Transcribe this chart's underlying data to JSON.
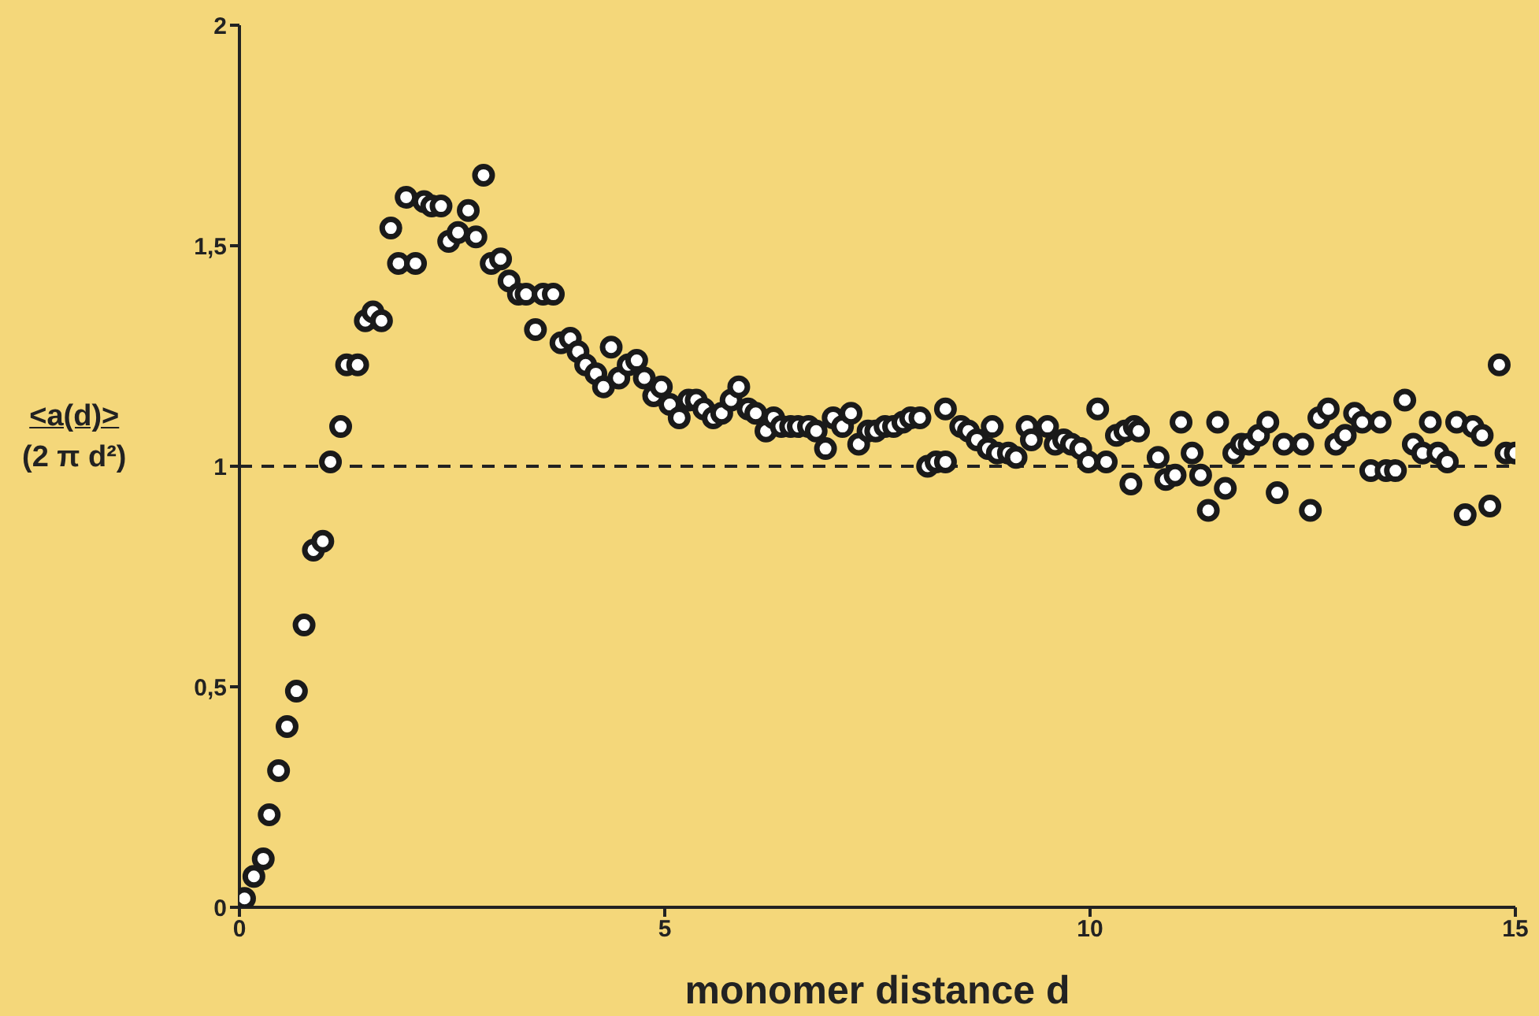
{
  "chart_data": {
    "type": "scatter",
    "xlabel": "monomer distance d",
    "ylabel": "<a(d)>\n(2 π d²)",
    "xlim": [
      0,
      15
    ],
    "xticks": [
      0,
      5,
      10,
      15
    ],
    "ylim": [
      0,
      2
    ],
    "yticks": [
      0,
      {
        "value": 0.5,
        "label": "0,5"
      },
      1,
      {
        "value": 1.5,
        "label": "1,5"
      },
      2
    ],
    "grid": false,
    "legend": false,
    "marker": "circle",
    "ref_lines": [
      {
        "axis": "y",
        "value": 1,
        "label": null,
        "line_style": "dashed",
        "color": "#222222"
      }
    ],
    "series": [
      {
        "color": "#1a1a1a",
        "x": [
          0.06,
          0.17,
          0.28,
          0.35,
          0.46,
          0.56,
          0.67,
          0.76,
          0.87,
          0.98,
          1.07,
          1.19,
          1.26,
          1.39,
          1.48,
          1.57,
          1.67,
          1.78,
          1.87,
          1.96,
          2.07,
          2.17,
          2.26,
          2.37,
          2.46,
          2.57,
          2.69,
          2.78,
          2.87,
          2.96,
          3.07,
          3.17,
          3.28,
          3.37,
          3.48,
          3.57,
          3.69,
          3.78,
          3.89,
          3.98,
          4.07,
          4.19,
          4.28,
          4.37,
          4.46,
          4.57,
          4.67,
          4.76,
          4.87,
          4.96,
          5.06,
          5.17,
          5.28,
          5.37,
          5.46,
          5.57,
          5.67,
          5.78,
          5.87,
          5.98,
          6.07,
          6.19,
          6.28,
          6.37,
          6.48,
          6.57,
          6.69,
          6.78,
          6.89,
          6.98,
          7.09,
          7.19,
          7.28,
          7.39,
          7.48,
          7.59,
          7.69,
          7.8,
          7.89,
          8.0,
          8.09,
          8.19,
          8.3,
          8.3,
          8.48,
          8.57,
          8.67,
          8.8,
          8.85,
          8.91,
          9.04,
          9.13,
          9.26,
          9.31,
          9.5,
          9.59,
          9.69,
          9.78,
          9.89,
          9.98,
          10.09,
          10.19,
          10.31,
          10.41,
          10.48,
          10.52,
          10.57,
          10.8,
          10.89,
          11.0,
          11.07,
          11.2,
          11.3,
          11.39,
          11.5,
          11.59,
          11.69,
          11.78,
          11.87,
          11.98,
          12.09,
          12.2,
          12.28,
          12.5,
          12.59,
          12.69,
          12.8,
          12.89,
          13.0,
          13.11,
          13.2,
          13.3,
          13.41,
          13.48,
          13.59,
          13.7,
          13.8,
          13.91,
          14.0,
          14.09,
          14.2,
          14.31,
          14.41,
          14.5,
          14.61,
          14.7,
          14.81,
          14.89,
          15.0
        ],
        "values": [
          0.02,
          0.07,
          0.11,
          0.21,
          0.31,
          0.41,
          0.49,
          0.64,
          0.81,
          0.83,
          1.01,
          1.09,
          1.23,
          1.23,
          1.33,
          1.35,
          1.33,
          1.54,
          1.46,
          1.61,
          1.46,
          1.6,
          1.59,
          1.59,
          1.51,
          1.53,
          1.58,
          1.52,
          1.66,
          1.46,
          1.47,
          1.42,
          1.39,
          1.39,
          1.31,
          1.39,
          1.39,
          1.28,
          1.29,
          1.26,
          1.23,
          1.21,
          1.18,
          1.27,
          1.2,
          1.23,
          1.24,
          1.2,
          1.16,
          1.18,
          1.14,
          1.11,
          1.15,
          1.15,
          1.13,
          1.11,
          1.12,
          1.15,
          1.18,
          1.13,
          1.12,
          1.08,
          1.11,
          1.09,
          1.09,
          1.09,
          1.09,
          1.08,
          1.04,
          1.11,
          1.09,
          1.12,
          1.05,
          1.08,
          1.08,
          1.09,
          1.09,
          1.1,
          1.11,
          1.11,
          1.0,
          1.01,
          1.01,
          1.13,
          1.09,
          1.08,
          1.06,
          1.04,
          1.09,
          1.03,
          1.03,
          1.02,
          1.09,
          1.06,
          1.09,
          1.05,
          1.06,
          1.05,
          1.04,
          1.01,
          1.13,
          1.01,
          1.07,
          1.08,
          0.96,
          1.09,
          1.08,
          1.02,
          0.97,
          0.98,
          1.1,
          1.03,
          0.98,
          0.9,
          1.1,
          0.95,
          1.03,
          1.05,
          1.05,
          1.07,
          1.1,
          0.94,
          1.05,
          1.05,
          0.9,
          1.11,
          1.13,
          1.05,
          1.07,
          1.12,
          1.1,
          0.99,
          1.1,
          0.99,
          0.99,
          1.15,
          1.05,
          1.03,
          1.1,
          1.03,
          1.01,
          1.1,
          0.89,
          1.09,
          1.07,
          0.91,
          1.23,
          1.03,
          1.03
        ]
      }
    ]
  }
}
